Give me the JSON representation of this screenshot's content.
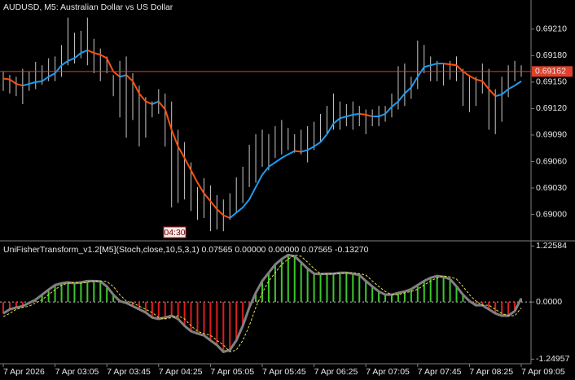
{
  "chart_data": [
    {
      "type": "range_bar",
      "title": "AUDUSD, M5:  Australian Dollar vs US Dollar",
      "annotation": "04:30",
      "high": [
        0.69162,
        0.69158,
        0.69156,
        0.69165,
        0.69162,
        0.69173,
        0.69169,
        0.69177,
        0.69179,
        0.69192,
        0.69223,
        0.69206,
        0.69208,
        0.69223,
        0.69199,
        0.69188,
        0.69179,
        0.69158,
        0.69174,
        0.69179,
        0.6916,
        0.69146,
        0.69133,
        0.69128,
        0.69142,
        0.69137,
        0.69128,
        0.69096,
        0.69082,
        0.69059,
        0.69031,
        0.69041,
        0.69033,
        0.69022,
        0.69017,
        0.69024,
        0.69042,
        0.69054,
        0.69079,
        0.69091,
        0.69096,
        0.69091,
        0.691,
        0.69107,
        0.69098,
        0.69091,
        0.69096,
        0.691,
        0.69105,
        0.69114,
        0.69123,
        0.69137,
        0.69128,
        0.69125,
        0.69128,
        0.69123,
        0.69119,
        0.69119,
        0.69123,
        0.69123,
        0.69137,
        0.69168,
        0.69171,
        0.69156,
        0.69197,
        0.69192,
        0.69179,
        0.69174,
        0.69171,
        0.69174,
        0.69179,
        0.69165,
        0.69158,
        0.69156,
        0.69171,
        0.69165,
        0.69142,
        0.69156,
        0.69169,
        0.69174,
        0.69169
      ],
      "low": [
        0.6914,
        0.69137,
        0.69134,
        0.69125,
        0.6914,
        0.69142,
        0.69147,
        0.69151,
        0.69151,
        0.69156,
        0.69169,
        0.69171,
        0.69177,
        0.69169,
        0.6916,
        0.69151,
        0.6916,
        0.69134,
        0.6911,
        0.69087,
        0.69107,
        0.69077,
        0.69087,
        0.6911,
        0.69114,
        0.69077,
        0.69008,
        0.69013,
        0.69017,
        0.69004,
        0.68994,
        0.68996,
        0.68981,
        0.68983,
        0.68981,
        0.68994,
        0.69002,
        0.69013,
        0.69031,
        0.69036,
        0.69054,
        0.6905,
        0.69064,
        0.69068,
        0.69073,
        0.6907,
        0.69068,
        0.69059,
        0.69073,
        0.69082,
        0.69091,
        0.69096,
        0.69096,
        0.691,
        0.69096,
        0.691,
        0.69091,
        0.691,
        0.691,
        0.69105,
        0.6911,
        0.69119,
        0.69123,
        0.69131,
        0.69142,
        0.6916,
        0.69151,
        0.69151,
        0.69146,
        0.69153,
        0.69151,
        0.69123,
        0.69116,
        0.69123,
        0.69137,
        0.69096,
        0.69091,
        0.69105,
        0.69133,
        0.69151,
        0.69156
      ],
      "bar_color": "#c8c8c8",
      "ma": {
        "values": [
          0.69154,
          0.69153,
          0.69148,
          0.69146,
          0.69148,
          0.6915,
          0.69151,
          0.69156,
          0.6916,
          0.69169,
          0.69174,
          0.69177,
          0.69183,
          0.69186,
          0.69183,
          0.69181,
          0.69177,
          0.69162,
          0.69156,
          0.69158,
          0.69151,
          0.69137,
          0.69128,
          0.69125,
          0.69128,
          0.69119,
          0.69096,
          0.69077,
          0.69064,
          0.6905,
          0.69036,
          0.69024,
          0.69015,
          0.69006,
          0.68999,
          0.68996,
          0.69002,
          0.69008,
          0.69017,
          0.69031,
          0.69045,
          0.69054,
          0.69059,
          0.69064,
          0.69068,
          0.69072,
          0.69071,
          0.69073,
          0.69077,
          0.69082,
          0.69091,
          0.69103,
          0.69109,
          0.69111,
          0.69113,
          0.69114,
          0.69113,
          0.69111,
          0.69111,
          0.69114,
          0.69122,
          0.69128,
          0.69137,
          0.69144,
          0.69156,
          0.69167,
          0.69169,
          0.69171,
          0.69171,
          0.6917,
          0.69169,
          0.69162,
          0.69157,
          0.69153,
          0.69151,
          0.69142,
          0.69134,
          0.69136,
          0.69142,
          0.69146,
          0.69151
        ],
        "up_color": "#1e9cf0",
        "down_color": "#ff5010"
      },
      "last_price": {
        "value": 0.69162,
        "label": "0.69162"
      },
      "last_price_color": "#e0402c",
      "ylim": [
        0.68971,
        0.69243
      ],
      "yticks": [
        {
          "value": 0.6921,
          "label": "0.69210"
        },
        {
          "value": 0.6918,
          "label": "0.69180"
        },
        {
          "value": 0.6915,
          "label": "0.69150"
        },
        {
          "value": 0.6912,
          "label": "0.69120"
        },
        {
          "value": 0.6909,
          "label": "0.69090"
        },
        {
          "value": 0.6906,
          "label": "0.69060"
        },
        {
          "value": 0.6903,
          "label": "0.69030"
        },
        {
          "value": 0.69,
          "label": "0.69000"
        }
      ]
    },
    {
      "type": "oscillator",
      "title": "UniFisherTransform_v1.2[M5](Stoch,close,10,5,3,1) 0.07565 0.00000 0.00000 0.07565 -0.13270",
      "categories": [
        "7 Apr 2026",
        null,
        null,
        null,
        null,
        null,
        null,
        null,
        "7 Apr 03:05",
        null,
        null,
        null,
        null,
        null,
        null,
        null,
        "7 Apr 03:45",
        null,
        null,
        null,
        null,
        null,
        null,
        null,
        "7 Apr 04:25",
        null,
        null,
        null,
        null,
        null,
        null,
        null,
        "7 Apr 05:05",
        null,
        null,
        null,
        null,
        null,
        null,
        null,
        "7 Apr 05:45",
        null,
        null,
        null,
        null,
        null,
        null,
        null,
        "7 Apr 06:25",
        null,
        null,
        null,
        null,
        null,
        null,
        null,
        "7 Apr 07:05",
        null,
        null,
        null,
        null,
        null,
        null,
        null,
        "7 Apr 07:45",
        null,
        null,
        null,
        null,
        null,
        null,
        null,
        "7 Apr 08:25",
        null,
        null,
        null,
        null,
        null,
        null,
        null,
        "7 Apr 09:05"
      ],
      "series": [
        {
          "values": [
            -0.25,
            -0.16,
            -0.12,
            -0.09,
            -0.02,
            0.05,
            0.16,
            0.27,
            0.37,
            0.41,
            0.43,
            0.41,
            0.43,
            0.46,
            0.46,
            0.45,
            0.34,
            0.16,
            0.02,
            -0.02,
            -0.09,
            -0.16,
            -0.23,
            -0.34,
            -0.37,
            -0.34,
            -0.3,
            -0.37,
            -0.52,
            -0.64,
            -0.69,
            -0.73,
            -0.84,
            -0.94,
            -1.09,
            -1.05,
            -0.84,
            -0.52,
            -0.12,
            0.2,
            0.46,
            0.64,
            0.82,
            0.94,
            1.03,
            1,
            0.87,
            0.73,
            0.62,
            0.61,
            0.62,
            0.62,
            0.64,
            0.64,
            0.62,
            0.59,
            0.46,
            0.34,
            0.23,
            0.16,
            0.16,
            0.2,
            0.23,
            0.28,
            0.37,
            0.46,
            0.53,
            0.57,
            0.55,
            0.5,
            0.34,
            0.16,
            0.02,
            -0.07,
            -0.07,
            -0.16,
            -0.25,
            -0.3,
            -0.3,
            -0.2,
            0.08
          ],
          "color": "#808080",
          "pos_color": "#3cc82c",
          "neg_color": "#e01c1c"
        },
        {
          "values": [
            -0.32,
            -0.25,
            -0.16,
            -0.12,
            -0.09,
            -0.02,
            0.05,
            0.16,
            0.27,
            0.37,
            0.41,
            0.43,
            0.41,
            0.43,
            0.46,
            0.46,
            0.45,
            0.34,
            0.16,
            0.02,
            -0.02,
            -0.09,
            -0.16,
            -0.23,
            -0.34,
            -0.37,
            -0.34,
            -0.3,
            -0.37,
            -0.52,
            -0.64,
            -0.69,
            -0.73,
            -0.84,
            -0.94,
            -1.09,
            -1.05,
            -0.84,
            -0.52,
            -0.12,
            0.2,
            0.46,
            0.64,
            0.82,
            0.94,
            1.03,
            1,
            0.87,
            0.73,
            0.62,
            0.61,
            0.62,
            0.62,
            0.64,
            0.64,
            0.62,
            0.59,
            0.46,
            0.34,
            0.23,
            0.16,
            0.16,
            0.2,
            0.23,
            0.28,
            0.37,
            0.46,
            0.53,
            0.57,
            0.55,
            0.5,
            0.34,
            0.16,
            0.02,
            -0.07,
            -0.07,
            -0.16,
            -0.25,
            -0.3,
            -0.3,
            -0.13
          ],
          "color": "#e8e040",
          "dashed": true
        }
      ],
      "zero_line": true,
      "ylim": [
        -1.35,
        1.32
      ],
      "yticks": [
        1.22584,
        {
          "value": 0,
          "label": "0.0000"
        },
        -1.24957
      ]
    }
  ]
}
